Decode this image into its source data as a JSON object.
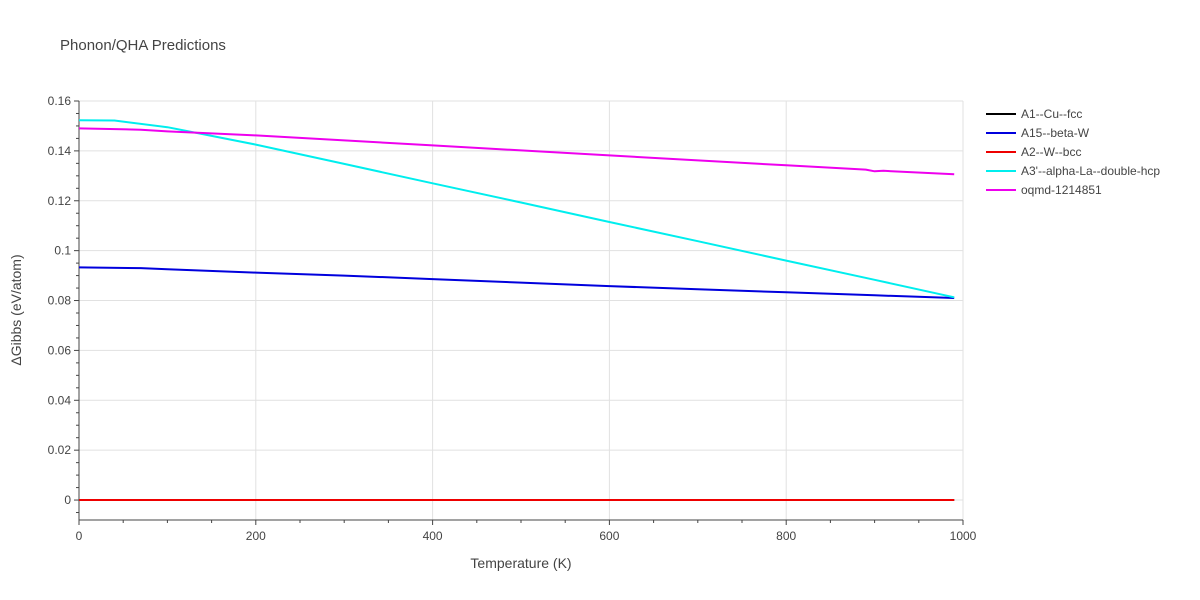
{
  "chart_data": {
    "type": "line",
    "title": "Phonon/QHA Predictions",
    "xlabel": "Temperature (K)",
    "ylabel": "ΔGibbs (eV/atom)",
    "xlim": [
      0,
      1000
    ],
    "ylim": [
      -0.008,
      0.16
    ],
    "x_ticks": [
      0,
      200,
      400,
      600,
      800,
      1000
    ],
    "x_tick_labels": [
      "0",
      "200",
      "400",
      "600",
      "800",
      "1000"
    ],
    "y_ticks": [
      0,
      0.02,
      0.04,
      0.06,
      0.08,
      0.1,
      0.12,
      0.14,
      0.16
    ],
    "y_tick_labels": [
      "0",
      "0.02",
      "0.04",
      "0.06",
      "0.08",
      "0.1",
      "0.12",
      "0.14",
      "0.16"
    ],
    "grid": true,
    "legend_position": "right",
    "series": [
      {
        "name": "A1--Cu--fcc",
        "color": "#000000",
        "x": [
          0,
          100,
          200,
          300,
          400,
          500,
          600,
          700,
          800,
          900,
          990
        ],
        "y": [
          0,
          0,
          0,
          0,
          0,
          0,
          0,
          0,
          0,
          0,
          0
        ]
      },
      {
        "name": "A15--beta-W",
        "color": "#0000dd",
        "x": [
          0,
          70,
          100,
          200,
          300,
          400,
          500,
          600,
          700,
          800,
          900,
          990
        ],
        "y": [
          0.0933,
          0.093,
          0.0925,
          0.0912,
          0.09,
          0.0886,
          0.0872,
          0.0858,
          0.0845,
          0.0833,
          0.0821,
          0.081
        ]
      },
      {
        "name": "A2--W--bcc",
        "color": "#ee0000",
        "x": [
          0,
          100,
          200,
          300,
          400,
          500,
          600,
          700,
          800,
          900,
          990
        ],
        "y": [
          0,
          0,
          0,
          0,
          0,
          0,
          0,
          0,
          0,
          0,
          0
        ]
      },
      {
        "name": "A3'--alpha-La--double-hcp",
        "color": "#00eeee",
        "x": [
          0,
          40,
          100,
          150,
          200,
          300,
          400,
          500,
          600,
          700,
          800,
          900,
          990
        ],
        "y": [
          0.1523,
          0.1522,
          0.1495,
          0.146,
          0.1425,
          0.1348,
          0.127,
          0.1193,
          0.1115,
          0.1038,
          0.096,
          0.0883,
          0.0813
        ]
      },
      {
        "name": "oqmd-1214851",
        "color": "#ee00ee",
        "x": [
          0,
          70,
          100,
          200,
          300,
          400,
          500,
          600,
          700,
          800,
          890,
          900,
          910,
          990
        ],
        "y": [
          0.149,
          0.1485,
          0.1478,
          0.1462,
          0.1442,
          0.1422,
          0.1402,
          0.1382,
          0.1362,
          0.1342,
          0.1325,
          0.1318,
          0.132,
          0.1306
        ]
      }
    ]
  }
}
